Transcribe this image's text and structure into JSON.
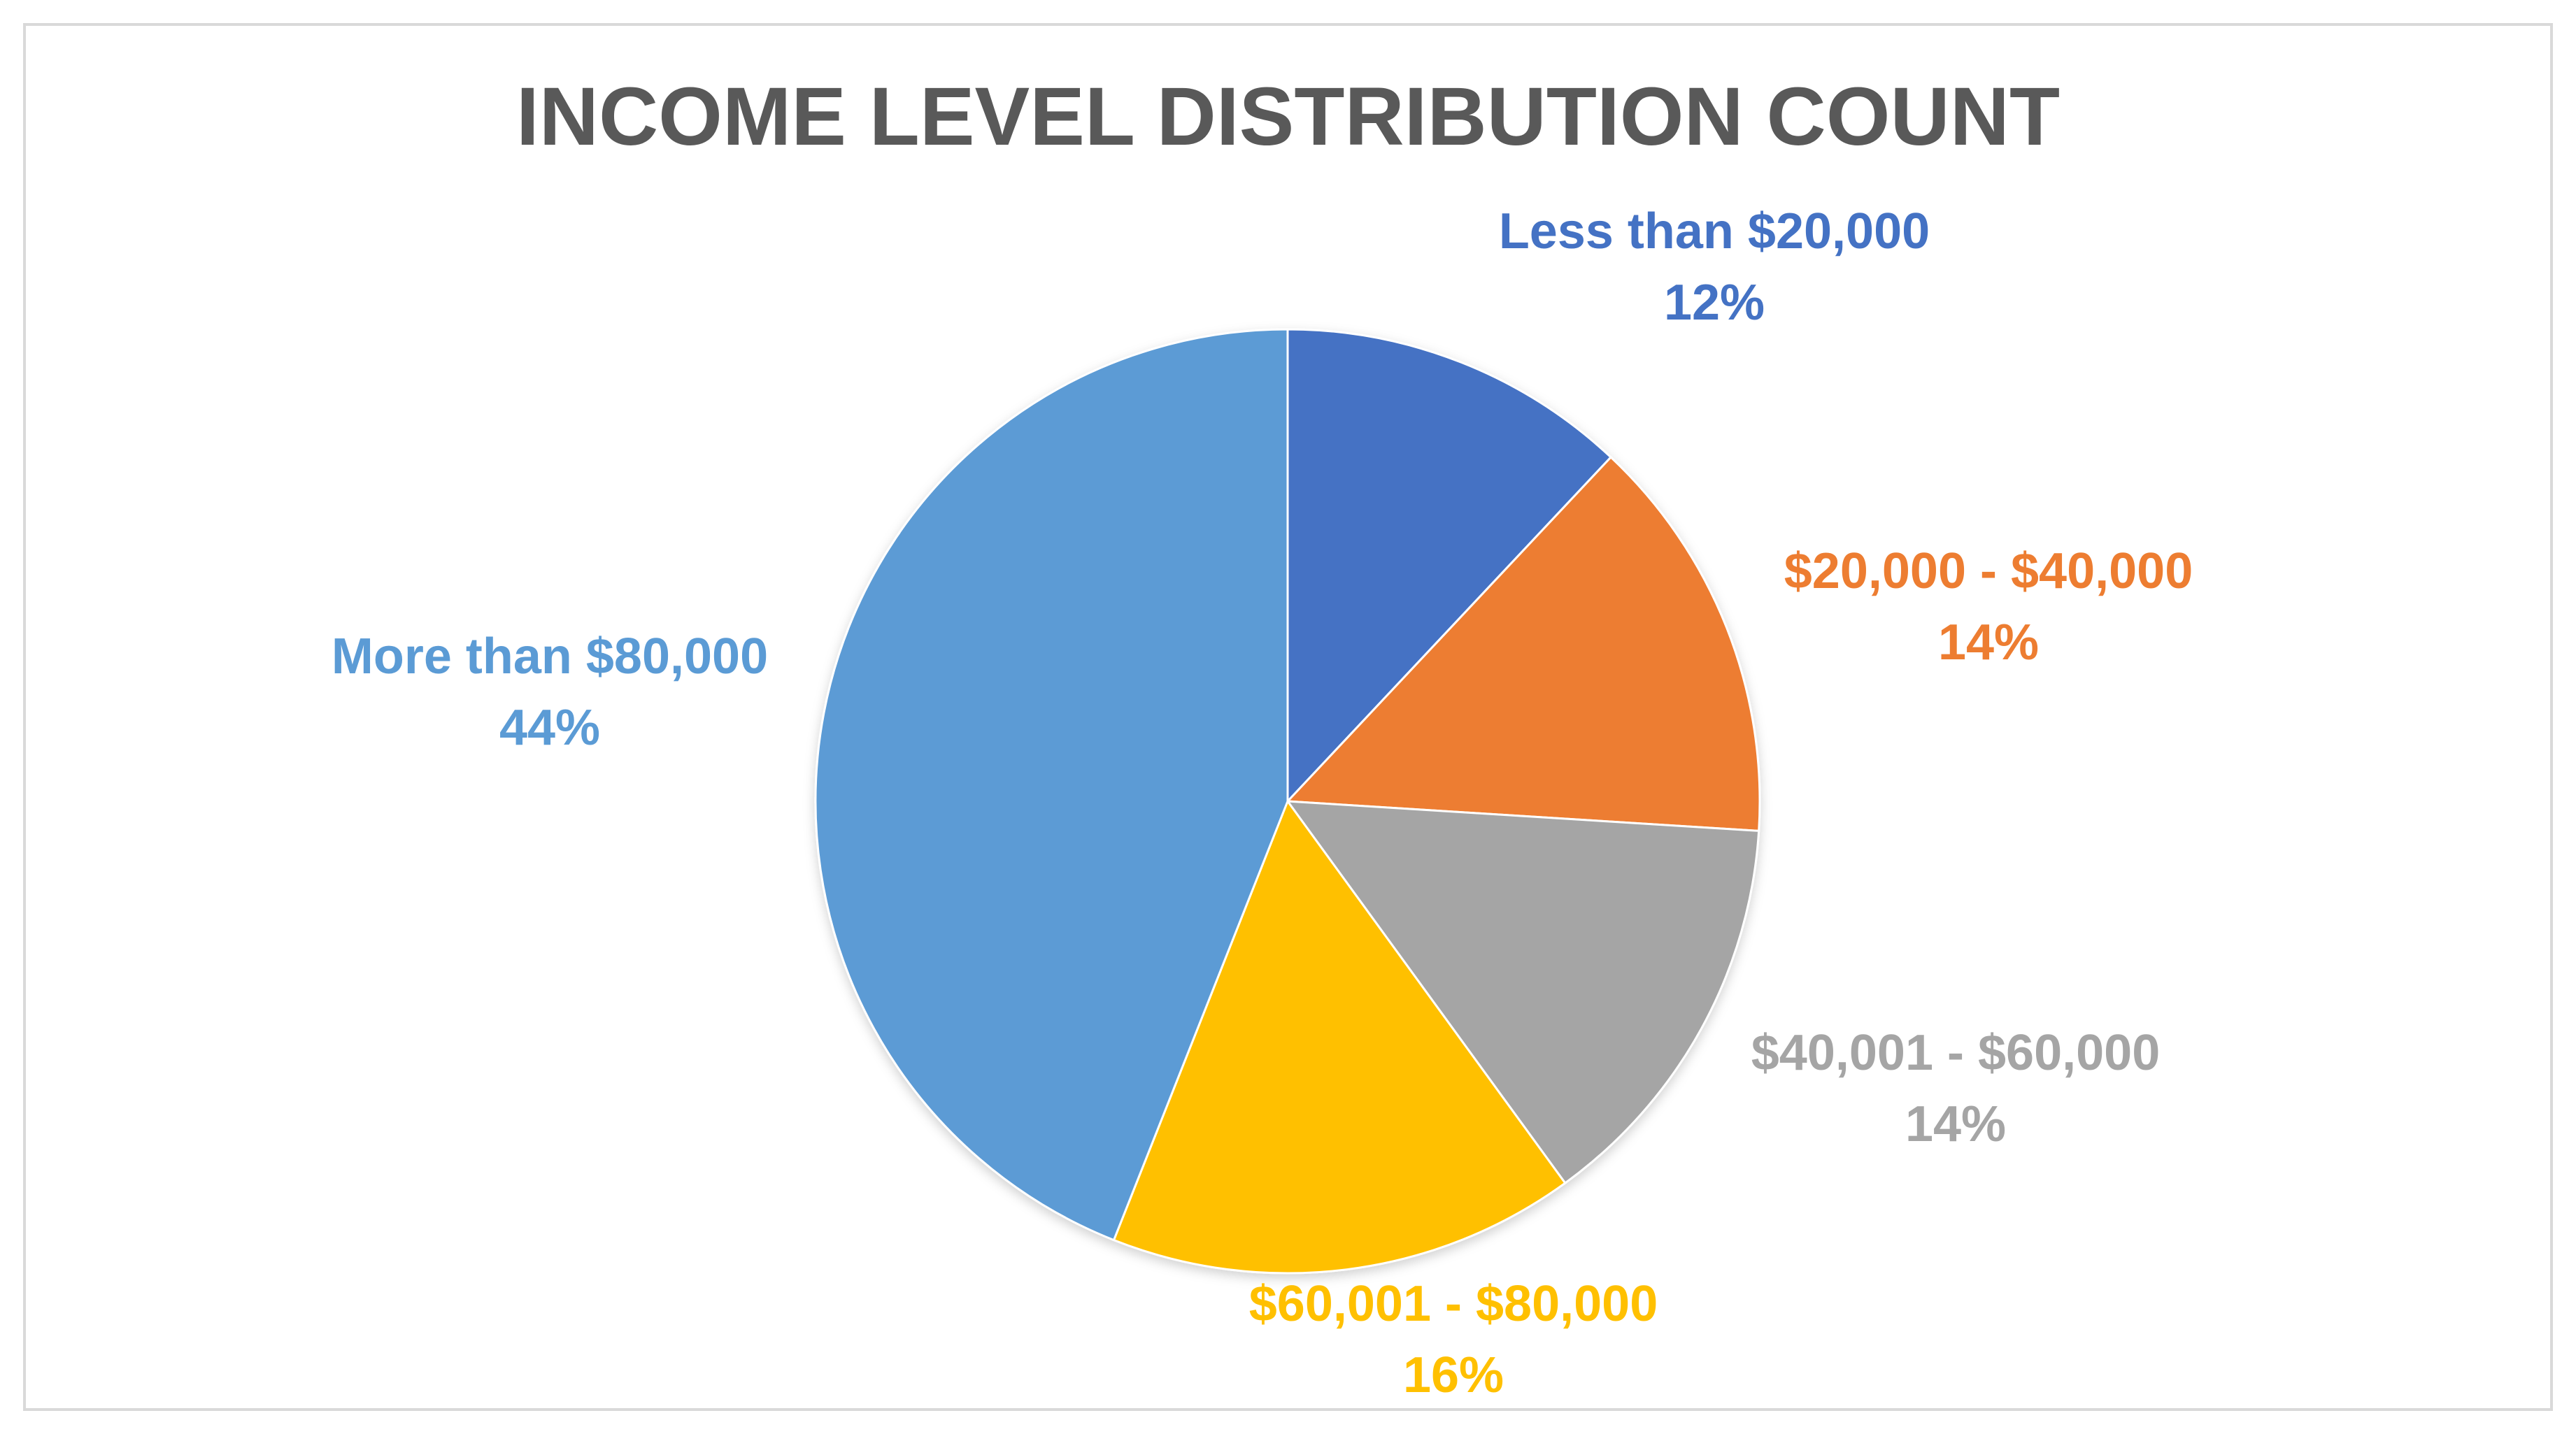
{
  "chart_data": {
    "type": "pie",
    "title": "INCOME LEVEL DISTRIBUTION COUNT",
    "slices": [
      {
        "name": "Less than $20,000",
        "value": 12,
        "value_label": "12%",
        "color": "#4472c4"
      },
      {
        "name": "$20,000 - $40,000",
        "value": 14,
        "value_label": "14%",
        "color": "#ed7d31"
      },
      {
        "name": "$40,001 - $60,000",
        "value": 14,
        "value_label": "14%",
        "color": "#a5a5a5"
      },
      {
        "name": "$60,001 - $80,000",
        "value": 16,
        "value_label": "16%",
        "color": "#ffc000"
      },
      {
        "name": "More than $80,000",
        "value": 44,
        "value_label": "44%",
        "color": "#5b9bd5"
      }
    ],
    "start_angle": "12 o'clock",
    "direction": "clockwise",
    "legend": "none",
    "data_labels": "outside, category name and percentage"
  }
}
